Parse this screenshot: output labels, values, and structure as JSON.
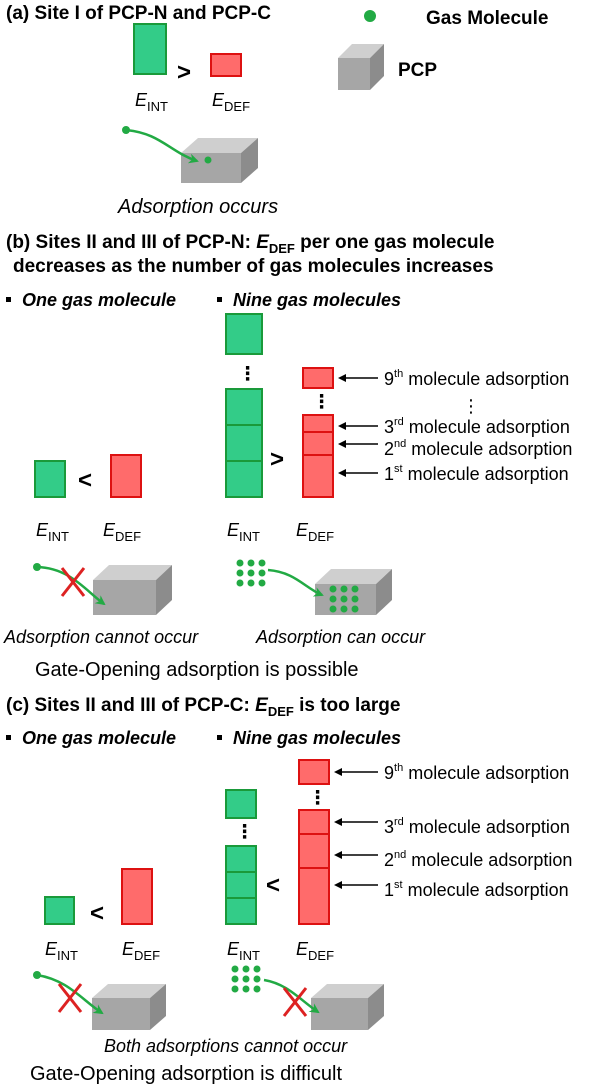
{
  "colors": {
    "green_fill": "#33cc88",
    "green_stroke": "#1a9a3a",
    "red_fill": "#ff6b6b",
    "red_stroke": "#dd1111",
    "gas_green": "#22aa44",
    "box_gray": "#a6a6a6",
    "cross_red": "#dd2222"
  },
  "icons": {
    "gas_molecule": "green-dot-icon",
    "pcp": "gray-box-icon",
    "cross": "red-x-icon",
    "arrow": "arrow-left-icon"
  },
  "legend": {
    "gas_molecule": "Gas Molecule",
    "pcp": "PCP"
  },
  "symbols": {
    "e": "E",
    "int": "INT",
    "def": "DEF",
    "gt": ">",
    "lt": "<",
    "dots": "⋮"
  },
  "section_a": {
    "heading": "(a)  Site I of PCP-N and PCP-C",
    "caption": "Adsorption occurs"
  },
  "section_b": {
    "heading_pre": "(b) Sites II and III of PCP-N: ",
    "heading_post": " per one gas molecule",
    "heading_line2": "decreases as the number of gas molecules increases",
    "left_label": "One gas molecule",
    "right_label": "Nine gas molecules",
    "caption_left": "Adsorption cannot occur",
    "caption_right": "Adsorption can  occur",
    "conclusion": "Gate-Opening adsorption is possible"
  },
  "section_c": {
    "heading_pre": "(c) Sites II and III of PCP-C: ",
    "heading_post": " is too large",
    "left_label": "One gas molecule",
    "right_label": "Nine gas molecules",
    "caption": "Both adsorptions cannot occur",
    "conclusion": "Gate-Opening adsorption is difficult"
  },
  "annotations": {
    "first": {
      "num": "1",
      "sup": "st",
      "text": " molecule adsorption"
    },
    "second": {
      "num": "2",
      "sup": "nd",
      "text": " molecule adsorption"
    },
    "third": {
      "num": "3",
      "sup": "rd",
      "text": " molecule adsorption"
    },
    "ninth": {
      "num": "9",
      "sup": "th",
      "text": " molecule adsorption"
    },
    "ellipsis": "⋮"
  }
}
